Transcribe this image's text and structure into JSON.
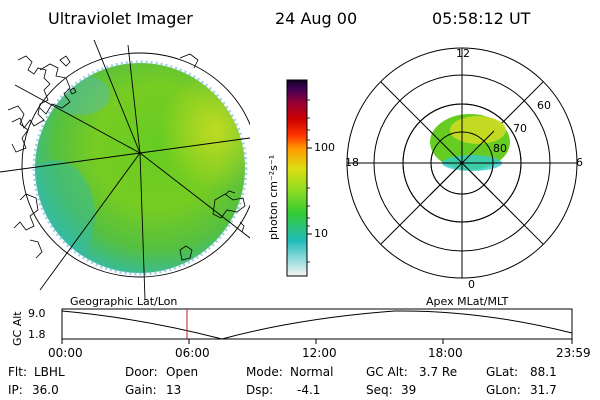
{
  "header": {
    "title": "Ultraviolet Imager",
    "date": "24 Aug 00",
    "time": "05:58:12 UT"
  },
  "colorbar": {
    "unit_label": "photon cm⁻²s⁻¹",
    "ticks": [
      "100",
      "10"
    ]
  },
  "polar": {
    "mlt_labels": [
      "12",
      "18",
      "6",
      "0"
    ],
    "lat_labels": [
      "60",
      "70",
      "80"
    ]
  },
  "panel_titles": {
    "left": "Geographic Lat/Lon",
    "right": "Apex MLat/MLT"
  },
  "altitude_plot": {
    "y_label": "GC Alt",
    "y_ticks": [
      "9.0",
      "1.8"
    ],
    "x_ticks": [
      "00:00",
      "06:00",
      "12:00",
      "18:00",
      "23:59"
    ]
  },
  "params": {
    "row1": [
      {
        "label": "Flt:",
        "value": "LBHL"
      },
      {
        "label": "Door:",
        "value": "Open"
      },
      {
        "label": "Mode:",
        "value": "Normal"
      },
      {
        "label": "GC Alt:",
        "value": "3.7 Re"
      },
      {
        "label": "GLat:",
        "value": "88.1"
      }
    ],
    "row2": [
      {
        "label": "IP:",
        "value": "36.0"
      },
      {
        "label": "Gain:",
        "value": "13"
      },
      {
        "label": "Dsp:",
        "value": "-4.1"
      },
      {
        "label": "Seq:",
        "value": "39"
      },
      {
        "label": "GLon:",
        "value": "31.7"
      }
    ]
  },
  "colors": {
    "aurora_green": "#66cc22",
    "aurora_yellow": "#ccdd22",
    "aurora_cyan": "#33cccc",
    "marker_red": "#bb2222"
  }
}
